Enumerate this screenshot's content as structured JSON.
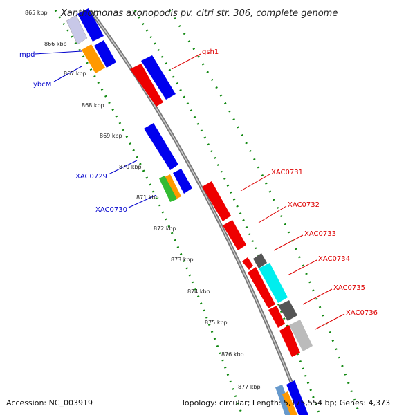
{
  "title": "Xanthomonas axonopodis pv. citri str. 306, complete genome",
  "accession": "Accession: NC_003919",
  "topology_text": "Topology: circular; Length: 5,175,554 bp; Genes: 4,373",
  "kbp_ticks": [
    "865 kbp",
    "866 kbp",
    "867 kbp",
    "868 kbp",
    "869 kbp",
    "870 kbp",
    "871 kbp",
    "872 kbp",
    "873 kbp",
    "874 kbp",
    "875 kbp",
    "876 kbp",
    "877 kbp"
  ],
  "gene_labels": {
    "mpd": "mpd",
    "ybcM": "ybcM",
    "gsh1": "gsh1",
    "XAC0729": "XAC0729",
    "XAC0730": "XAC0730",
    "XAC0731": "XAC0731",
    "XAC0732": "XAC0732",
    "XAC0733": "XAC0733",
    "XAC0734": "XAC0734",
    "XAC0735": "XAC0735",
    "XAC0736": "XAC0736"
  },
  "colors": {
    "red": "#ee0000",
    "blue": "#0000ee",
    "orange": "#ff9900",
    "green": "#33bb33",
    "cyan": "#00eeee",
    "darkgray": "#666666",
    "lightgray": "#bbbbbb",
    "backbone": "#888888",
    "tick_green": "#118811"
  }
}
